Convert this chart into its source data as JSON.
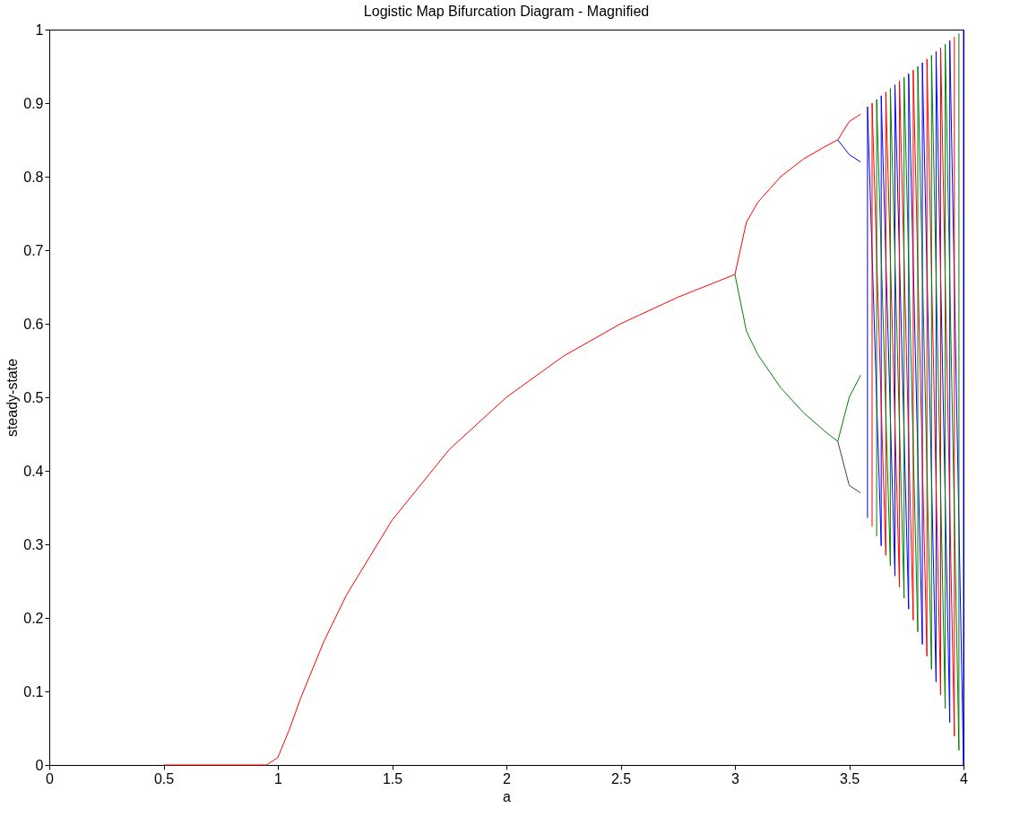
{
  "chart_data": {
    "type": "line",
    "title": "Logistic Map Bifurcation Diagram - Magnified",
    "xlabel": "a",
    "ylabel": "steady-state",
    "xlim": [
      0,
      4
    ],
    "xticks": [
      0,
      0.5,
      1,
      1.5,
      2,
      2.5,
      3,
      3.5,
      4
    ],
    "ylim": [
      0,
      1
    ],
    "yticks": [
      0,
      0.1,
      0.2,
      0.3,
      0.4,
      0.5,
      0.6,
      0.7,
      0.8,
      0.9,
      1
    ],
    "marker": "none",
    "line_style": "solid",
    "series": [
      {
        "color": "#ff0000",
        "x": [
          0.5,
          0.8,
          0.95,
          1.0,
          1.05,
          1.1,
          1.2,
          1.3,
          1.5,
          1.75,
          2.0,
          2.25,
          2.5,
          2.75,
          3.0,
          3.05,
          3.1,
          3.2,
          3.3,
          3.4,
          3.45,
          3.5,
          3.55
        ],
        "values": [
          0,
          0,
          0,
          0.01,
          0.048,
          0.091,
          0.167,
          0.231,
          0.333,
          0.429,
          0.5,
          0.556,
          0.6,
          0.636,
          0.667,
          0.738,
          0.765,
          0.8,
          0.824,
          0.842,
          0.85,
          0.875,
          0.885
        ]
      },
      {
        "color": "#008000",
        "x": [
          3.0,
          3.05,
          3.1,
          3.2,
          3.3,
          3.4,
          3.45,
          3.5,
          3.55
        ],
        "values": [
          0.667,
          0.59,
          0.558,
          0.513,
          0.479,
          0.452,
          0.44,
          0.5,
          0.53
        ]
      },
      {
        "color": "#0000ff",
        "x": [
          3.45,
          3.5,
          3.55
        ],
        "values": [
          0.85,
          0.83,
          0.82
        ]
      },
      {
        "color": "#4b3a5a",
        "x": [
          3.45,
          3.5,
          3.55
        ],
        "values": [
          0.44,
          0.38,
          0.37
        ]
      },
      {
        "color": "#0000ff",
        "x": [
          3.58,
          3.58,
          3.64,
          3.64,
          3.7,
          3.7,
          3.76,
          3.76,
          3.82,
          3.82,
          3.88,
          3.88,
          3.94,
          3.94,
          4.0,
          4.0
        ],
        "values": [
          0.336,
          0.895,
          0.298,
          0.91,
          0.257,
          0.925,
          0.212,
          0.94,
          0.164,
          0.955,
          0.113,
          0.97,
          0.058,
          0.985,
          0,
          1
        ]
      },
      {
        "color": "#ff0000",
        "x": [
          3.6,
          3.6,
          3.66,
          3.66,
          3.72,
          3.72,
          3.78,
          3.78,
          3.84,
          3.84,
          3.9,
          3.9,
          3.96,
          3.96
        ],
        "values": [
          0.324,
          0.9,
          0.285,
          0.915,
          0.242,
          0.93,
          0.197,
          0.945,
          0.148,
          0.96,
          0.095,
          0.975,
          0.039,
          0.99
        ]
      },
      {
        "color": "#008000",
        "x": [
          3.62,
          3.62,
          3.68,
          3.68,
          3.74,
          3.74,
          3.8,
          3.8,
          3.86,
          3.86,
          3.92,
          3.92,
          3.98,
          3.98
        ],
        "values": [
          0.311,
          0.905,
          0.271,
          0.92,
          0.227,
          0.935,
          0.181,
          0.95,
          0.13,
          0.965,
          0.077,
          0.98,
          0.02,
          0.995
        ]
      }
    ]
  }
}
